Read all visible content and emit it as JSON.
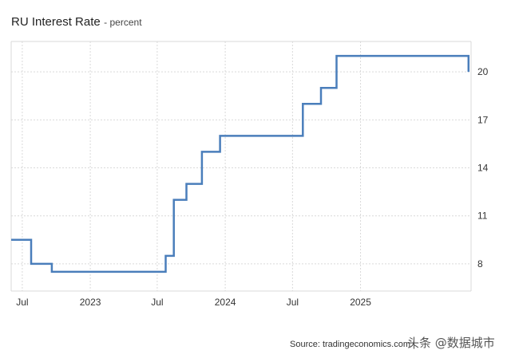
{
  "title": {
    "main": "RU Interest Rate",
    "sub": "- percent"
  },
  "footer": {
    "source": "Source: tradingeconomics.com |",
    "watermark": "头条 @数据城市"
  },
  "colors": {
    "line": "#4a7ebb",
    "grid": "#d9d9d9"
  },
  "chart_data": {
    "type": "line",
    "step": true,
    "title": "RU Interest Rate",
    "subtitle": "- percent",
    "xlabel": "",
    "ylabel": "",
    "y_axis_position": "right",
    "ylim": [
      6.3,
      21.9
    ],
    "yticks": [
      8,
      11,
      14,
      17,
      20
    ],
    "xlim": [
      "2022-06-01",
      "2025-10-27"
    ],
    "xticks": [
      {
        "label": "Jul",
        "date": "2022-07-01"
      },
      {
        "label": "2023",
        "date": "2023-01-01"
      },
      {
        "label": "Jul",
        "date": "2023-07-01"
      },
      {
        "label": "2024",
        "date": "2024-01-01"
      },
      {
        "label": "Jul",
        "date": "2024-07-01"
      },
      {
        "label": "2025",
        "date": "2025-01-01"
      }
    ],
    "grid": true,
    "series": [
      {
        "points": [
          [
            "2022-06-01",
            9.5
          ],
          [
            "2022-07-25",
            8.0
          ],
          [
            "2022-09-19",
            7.5
          ],
          [
            "2023-07-24",
            8.5
          ],
          [
            "2023-08-15",
            12.0
          ],
          [
            "2023-09-18",
            13.0
          ],
          [
            "2023-10-30",
            15.0
          ],
          [
            "2023-12-18",
            16.0
          ],
          [
            "2024-07-29",
            18.0
          ],
          [
            "2024-09-16",
            19.0
          ],
          [
            "2024-10-28",
            21.0
          ],
          [
            "2025-10-20",
            21.0
          ],
          [
            "2025-10-20",
            20.0
          ]
        ]
      }
    ]
  }
}
